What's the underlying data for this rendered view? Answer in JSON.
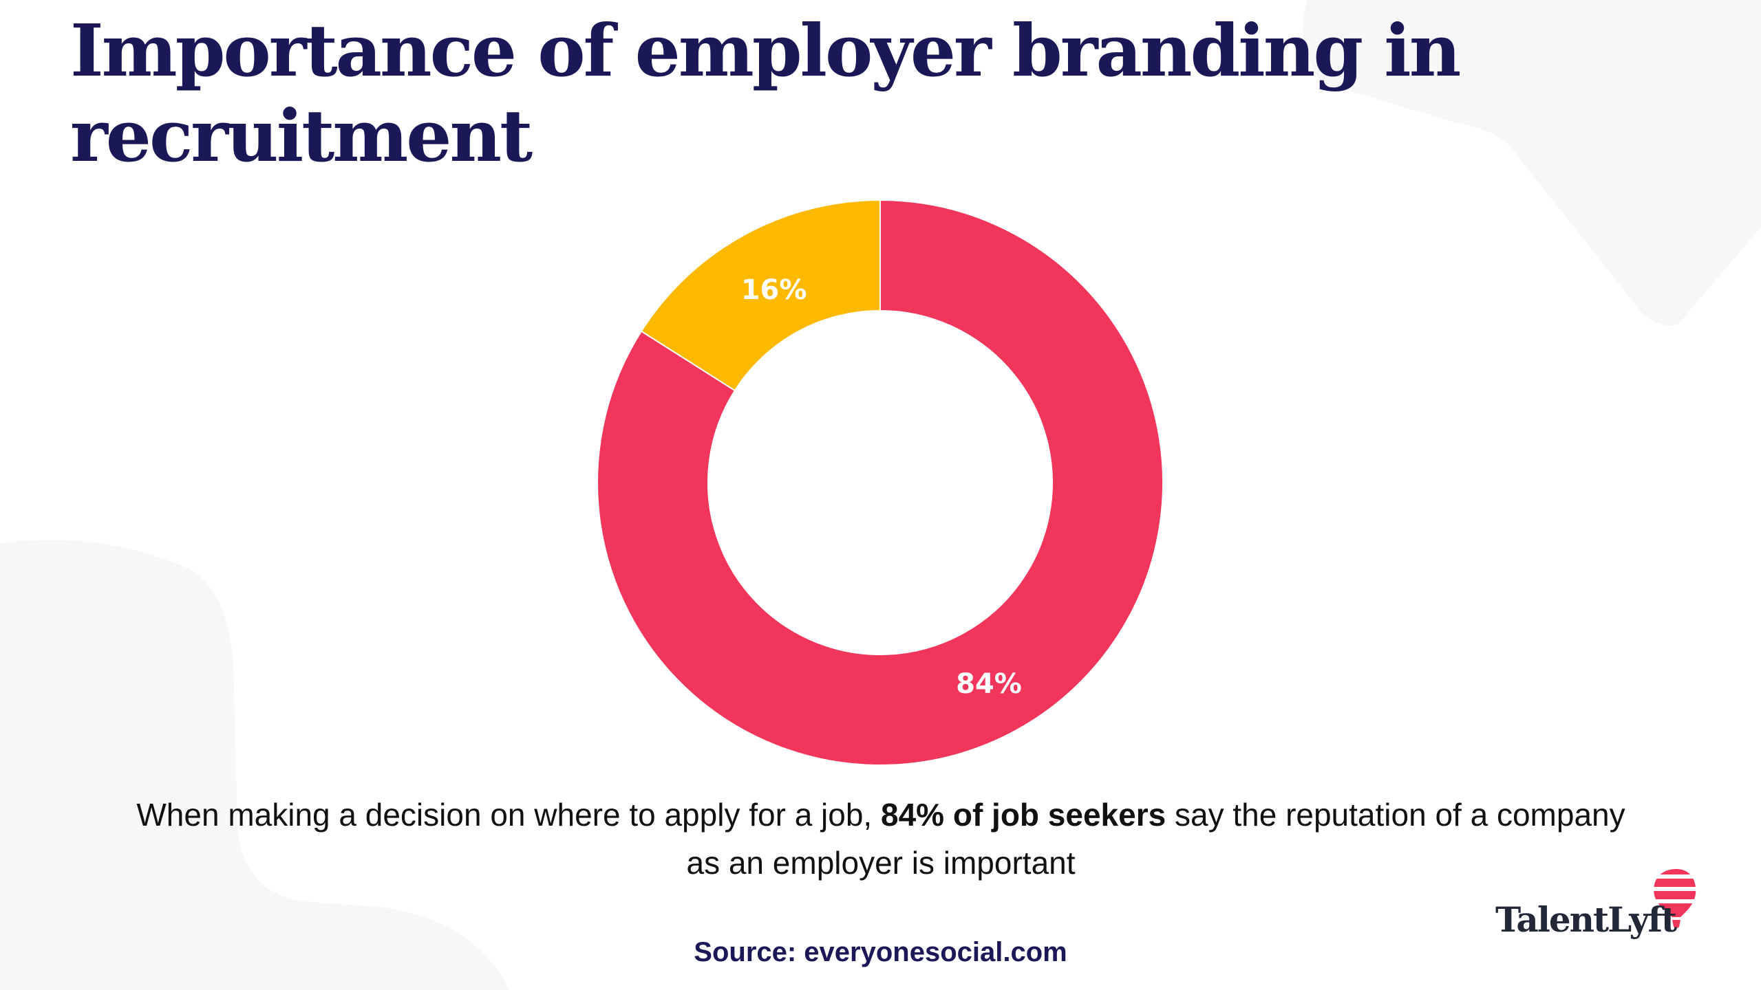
{
  "title": "Importance of employer branding in recruitment",
  "chart_data": {
    "type": "pie",
    "donut": true,
    "slices": [
      {
        "label": "84%",
        "value": 84,
        "color": "#f2355b"
      },
      {
        "label": "16%",
        "value": 16,
        "color": "#fdb900"
      }
    ]
  },
  "caption": {
    "before": "When making a decision on where to apply for a job, ",
    "bold": "84% of job seekers",
    "after": " say the reputation of a company as an employer is important"
  },
  "source": "Source: everyonesocial.com",
  "logo": {
    "text": "TalentLyft",
    "accent": "#f2355b",
    "ink": "#232838"
  },
  "colors": {
    "title": "#1a1856",
    "background_shape": "#f7f7f7"
  }
}
